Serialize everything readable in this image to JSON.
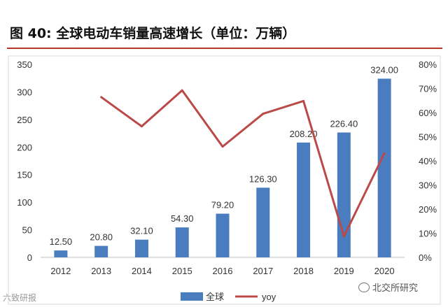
{
  "header": {
    "title": "图 40:  全球电动车销量高速增长（单位：万辆）"
  },
  "watermarks": {
    "left": "六致研报",
    "right": "北交所研究"
  },
  "colors": {
    "bar": "#4a7cc0",
    "line": "#b94a48",
    "title_rule": "#b8342f",
    "axis": "#bfbfbf"
  },
  "chart_data": {
    "type": "bar",
    "categories": [
      "2012",
      "2013",
      "2014",
      "2015",
      "2016",
      "2017",
      "2018",
      "2019",
      "2020"
    ],
    "series": [
      {
        "name": "全球",
        "type": "bar",
        "axis": "left",
        "values": [
          12.5,
          20.8,
          32.1,
          54.3,
          79.2,
          126.3,
          208.2,
          226.4,
          324.0
        ]
      },
      {
        "name": "yoy",
        "type": "line",
        "axis": "right",
        "values": [
          null,
          0.664,
          0.543,
          0.692,
          0.459,
          0.595,
          0.648,
          0.087,
          0.431
        ]
      }
    ],
    "data_labels": [
      "12.50",
      "20.80",
      "32.10",
      "54.30",
      "79.20",
      "126.30",
      "208.20",
      "226.40",
      "324.00"
    ],
    "y_left": {
      "min": 0,
      "max": 350,
      "ticks": [
        "0",
        "50",
        "100",
        "150",
        "200",
        "250",
        "300",
        "350"
      ]
    },
    "y_right": {
      "min": 0,
      "max": 0.8,
      "ticks": [
        "0%",
        "10%",
        "20%",
        "30%",
        "40%",
        "50%",
        "60%",
        "70%",
        "80%"
      ]
    },
    "legend_position": "bottom",
    "grid": false
  }
}
